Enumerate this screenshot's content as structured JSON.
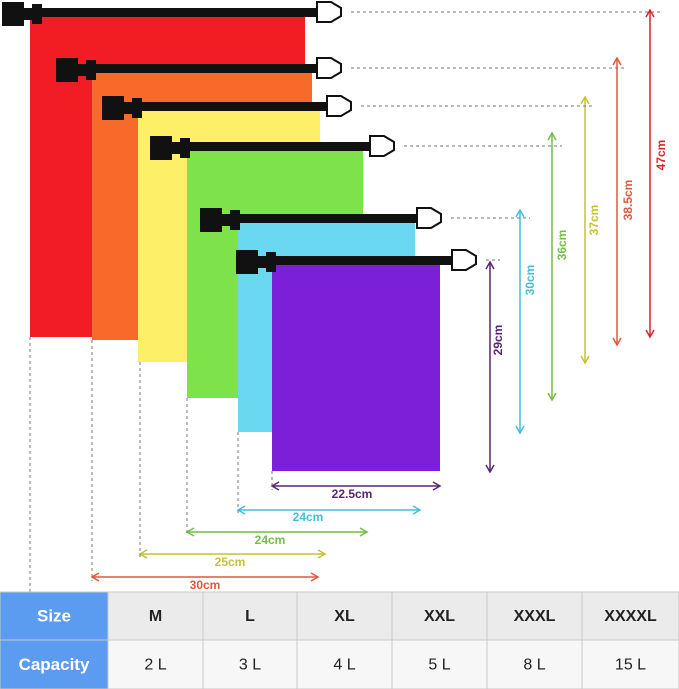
{
  "dimensions": {
    "heights": [
      "47cm",
      "38.5cm",
      "37cm",
      "36cm",
      "30cm",
      "29cm"
    ],
    "widths": [
      "22.5cm",
      "24cm",
      "24cm",
      "25cm",
      "30cm"
    ]
  },
  "table": {
    "rows": [
      [
        "Size",
        "M",
        "L",
        "XL",
        "XXL",
        "XXXL",
        "XXXXL"
      ],
      [
        "Capacity",
        "2 L",
        "3 L",
        "4 L",
        "5 L",
        "8 L",
        "15 L"
      ]
    ]
  }
}
